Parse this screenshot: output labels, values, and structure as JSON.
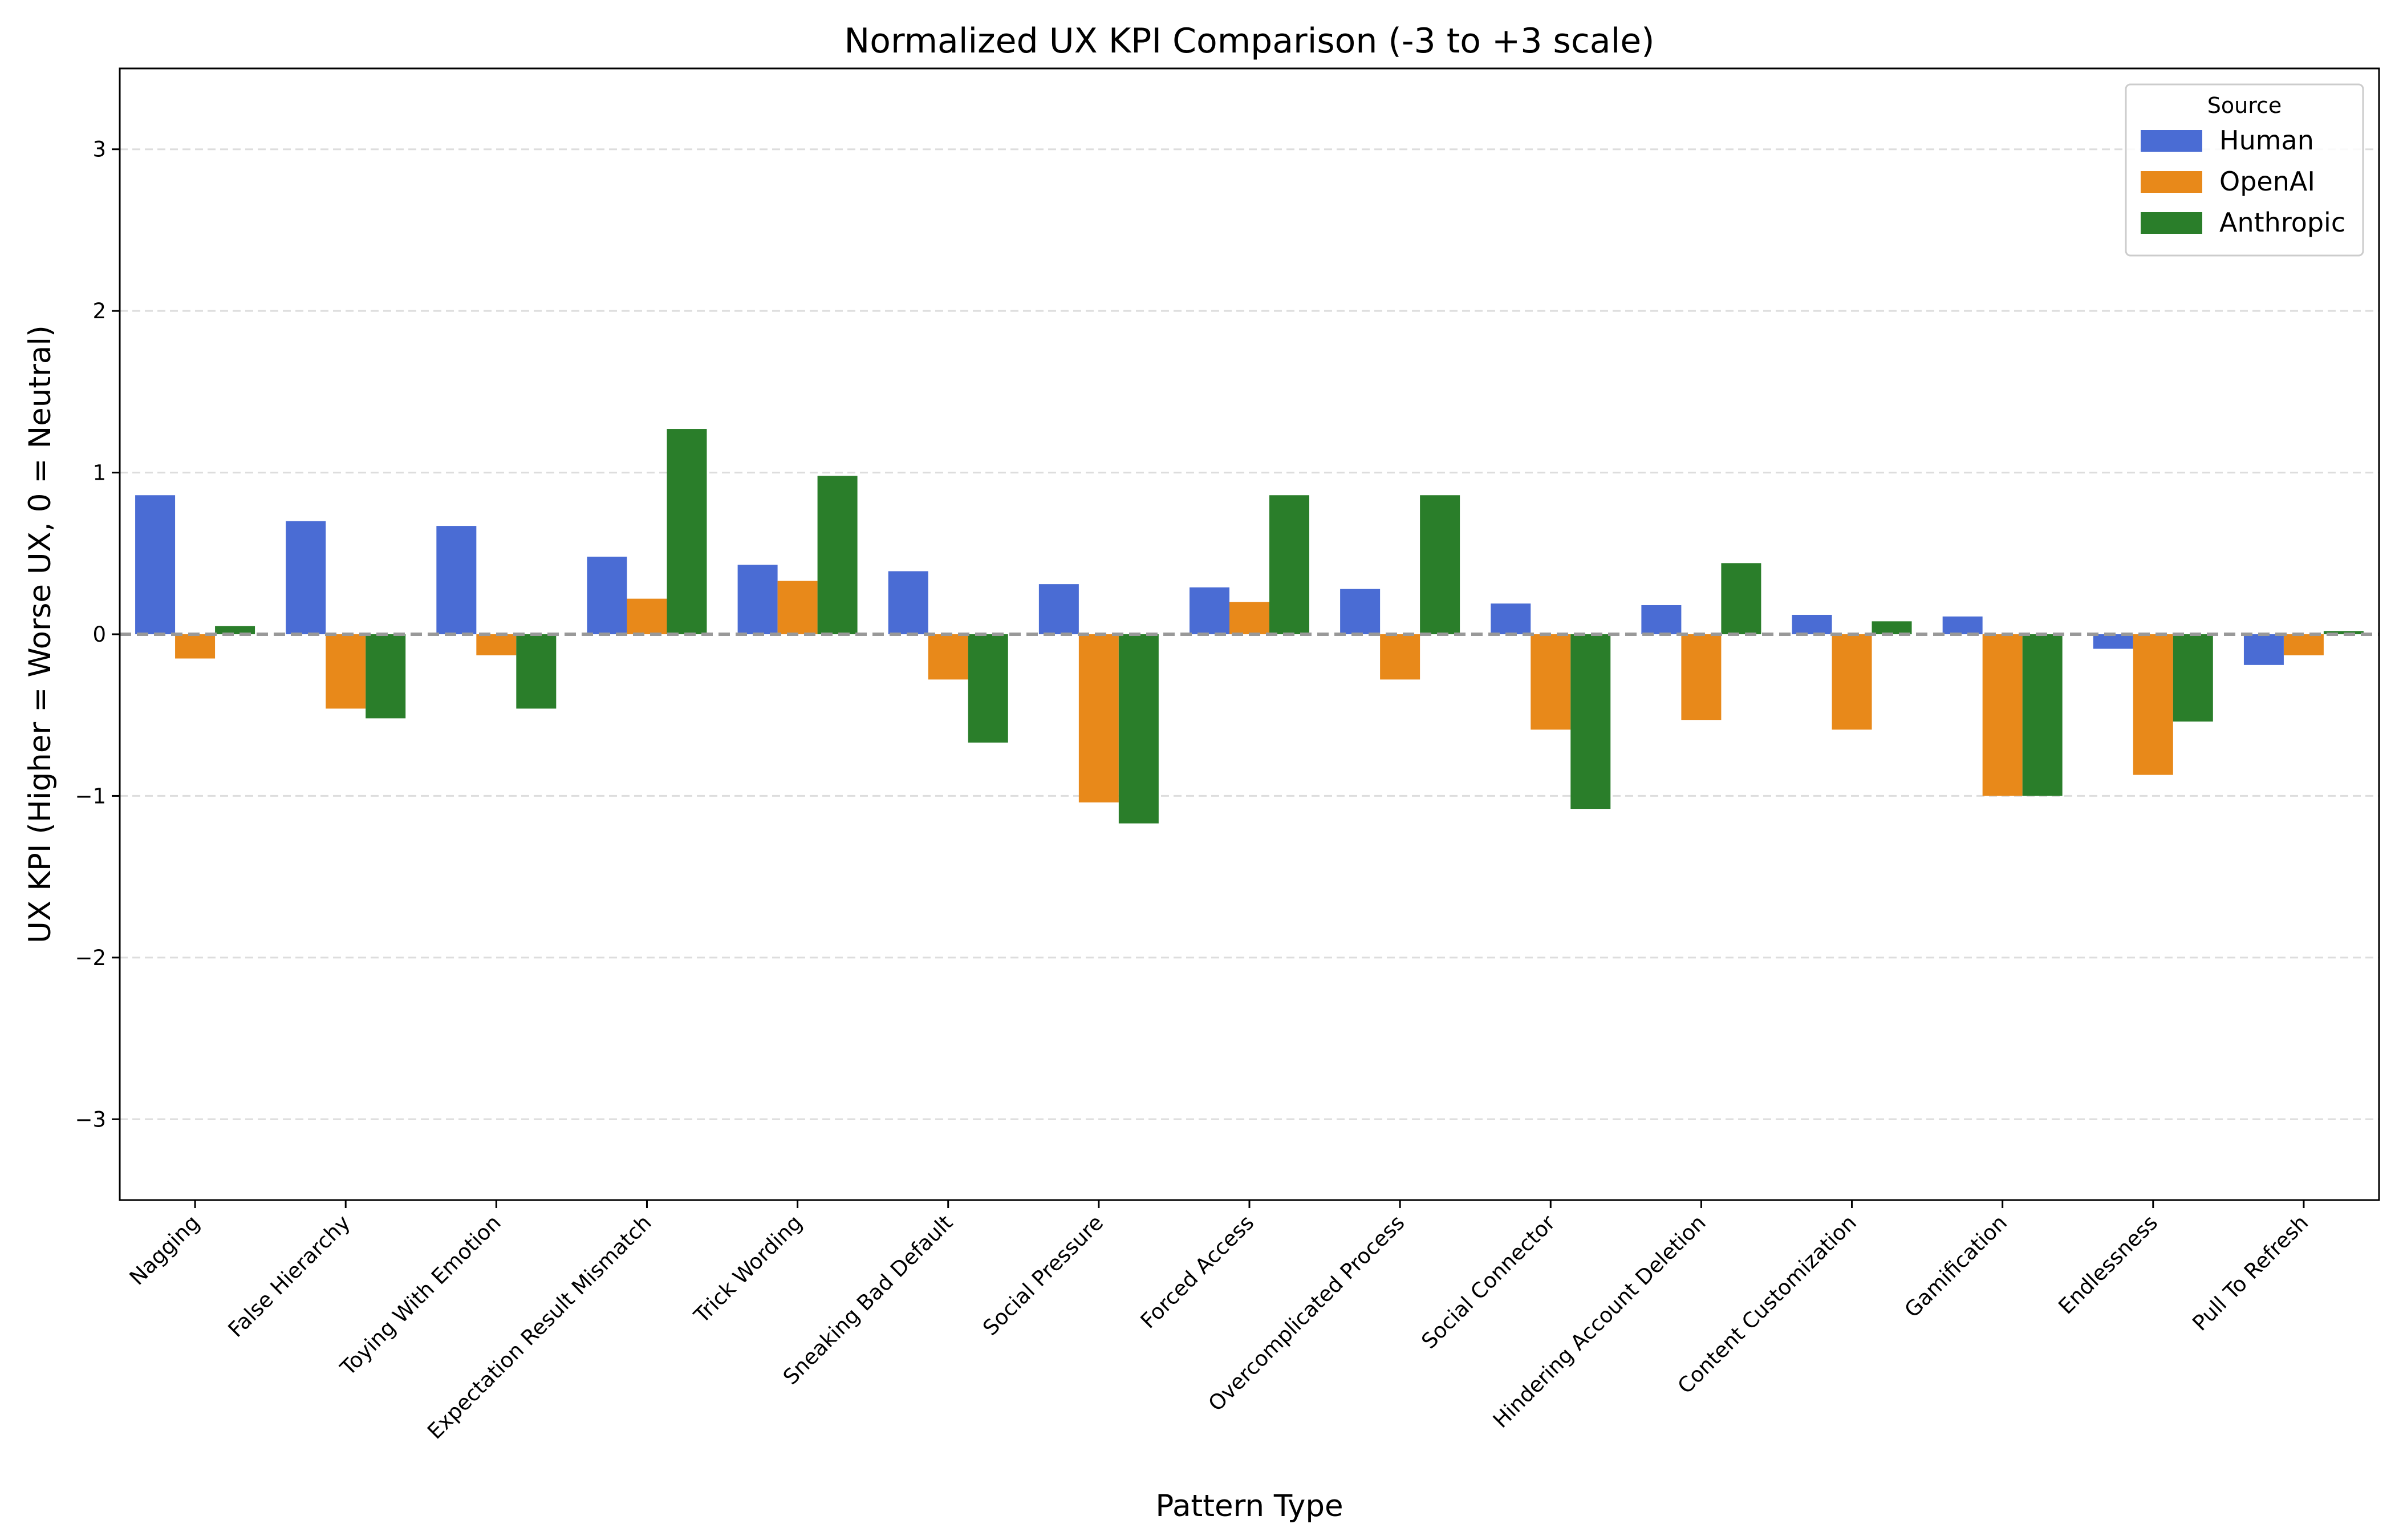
{
  "chart_data": {
    "type": "bar",
    "title": "Normalized UX KPI Comparison (-3 to +3 scale)",
    "xlabel": "Pattern Type",
    "ylabel": "UX KPI (Higher = Worse UX, 0 = Neutral)",
    "ylim": [
      -3.5,
      3.5
    ],
    "yticks": [
      {
        "value": 3,
        "label": "3"
      },
      {
        "value": 2,
        "label": "2"
      },
      {
        "value": 1,
        "label": "1"
      },
      {
        "value": 0,
        "label": "0"
      },
      {
        "value": -1,
        "label": "−1"
      },
      {
        "value": -2,
        "label": "−2"
      },
      {
        "value": -3,
        "label": "−3"
      }
    ],
    "grid": "horizontal dashed",
    "zero_line": "dashed gray",
    "legend": {
      "title": "Source",
      "placement": "top-right"
    },
    "categories": [
      "Nagging",
      "False Hierarchy",
      "Toying With Emotion",
      "Expectation Result Mismatch",
      "Trick Wording",
      "Sneaking Bad Default",
      "Social Pressure",
      "Forced Access",
      "Overcomplicated Process",
      "Social Connector",
      "Hindering Account Deletion",
      "Content Customization",
      "Gamification",
      "Endlessness",
      "Pull To Refresh"
    ],
    "series": [
      {
        "name": "Human",
        "color": "#4a6cd4",
        "values": [
          0.86,
          0.7,
          0.67,
          0.48,
          0.43,
          0.39,
          0.31,
          0.29,
          0.28,
          0.19,
          0.18,
          0.12,
          0.11,
          -0.09,
          -0.19
        ]
      },
      {
        "name": "OpenAI",
        "color": "#e8891a",
        "values": [
          -0.15,
          -0.46,
          -0.13,
          0.22,
          0.33,
          -0.28,
          -1.04,
          0.2,
          -0.28,
          -0.59,
          -0.53,
          -0.59,
          -1.0,
          -0.87,
          -0.13
        ]
      },
      {
        "name": "Anthropic",
        "color": "#2a7e2a",
        "values": [
          0.05,
          -0.52,
          -0.46,
          1.27,
          0.98,
          -0.67,
          -1.17,
          0.86,
          0.86,
          -1.08,
          0.44,
          0.08,
          -1.0,
          -0.54,
          0.02
        ]
      }
    ]
  }
}
